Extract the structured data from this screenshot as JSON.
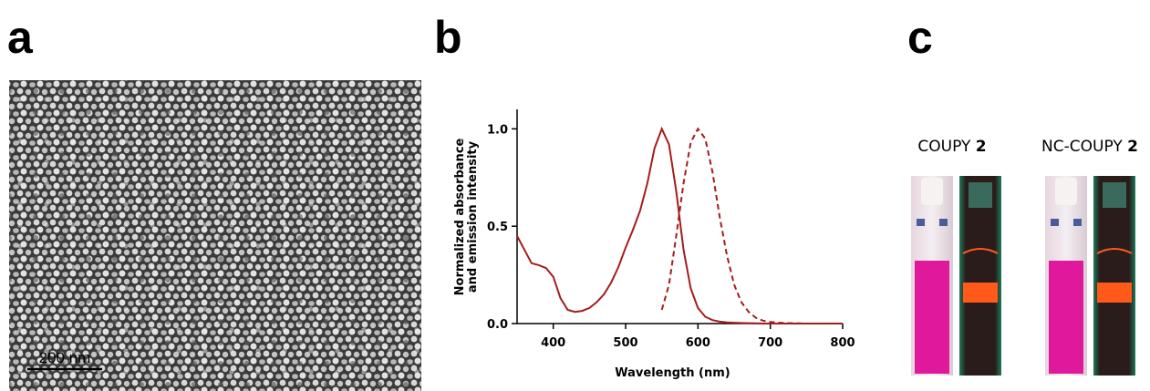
{
  "panel_labels": [
    "a",
    "b",
    "c"
  ],
  "scale_bar": "200 nm",
  "captions": [
    {
      "name": "COUPY",
      "number": "2"
    },
    {
      "name": "NC-COUPY",
      "number": "2"
    }
  ],
  "chart_data": {
    "type": "line",
    "xlabel": "Wavelength (nm)",
    "ylabel": [
      "Normalized absorbance",
      "and emission intensity"
    ],
    "x": [
      350,
      360,
      370,
      380,
      390,
      400,
      410,
      420,
      430,
      440,
      450,
      460,
      470,
      480,
      490,
      500,
      510,
      520,
      530,
      540,
      550,
      560,
      570,
      580,
      590,
      600,
      610,
      620,
      630,
      640,
      650,
      660,
      670,
      680,
      690,
      700,
      710,
      720,
      730,
      740,
      750,
      760,
      770,
      780,
      790,
      800
    ],
    "series": [
      {
        "color": "#a51c1c",
        "linestyle": "solid",
        "values": [
          0.45,
          0.38,
          0.31,
          0.3,
          0.285,
          0.24,
          0.13,
          0.07,
          0.06,
          0.065,
          0.08,
          0.11,
          0.15,
          0.21,
          0.29,
          0.39,
          0.48,
          0.58,
          0.72,
          0.9,
          1.0,
          0.92,
          0.68,
          0.38,
          0.18,
          0.08,
          0.035,
          0.018,
          0.01,
          0.006,
          0.004,
          0.003,
          0.002,
          0.001,
          0,
          0,
          0,
          0,
          0,
          0,
          0,
          0,
          0,
          0,
          0,
          0
        ]
      },
      {
        "color": "#a51c1c",
        "linestyle": "dashed",
        "values": [
          null,
          null,
          null,
          null,
          null,
          null,
          null,
          null,
          null,
          null,
          null,
          null,
          null,
          null,
          null,
          null,
          null,
          null,
          null,
          null,
          0.07,
          0.2,
          0.45,
          0.72,
          0.93,
          1.0,
          0.95,
          0.78,
          0.55,
          0.35,
          0.2,
          0.11,
          0.06,
          0.03,
          0.015,
          0.008,
          0.005,
          0.003,
          0.002,
          0.001,
          0,
          0,
          0,
          0,
          0,
          0
        ]
      }
    ],
    "xlim": [
      350,
      800
    ],
    "ylim": [
      0,
      1.1
    ],
    "xticks": [
      400,
      500,
      600,
      700,
      800
    ],
    "yticks": [
      {
        "value": 0,
        "label": "0.0"
      },
      {
        "value": 0.5,
        "label": "0.5"
      },
      {
        "value": 1,
        "label": "1.0"
      }
    ]
  }
}
